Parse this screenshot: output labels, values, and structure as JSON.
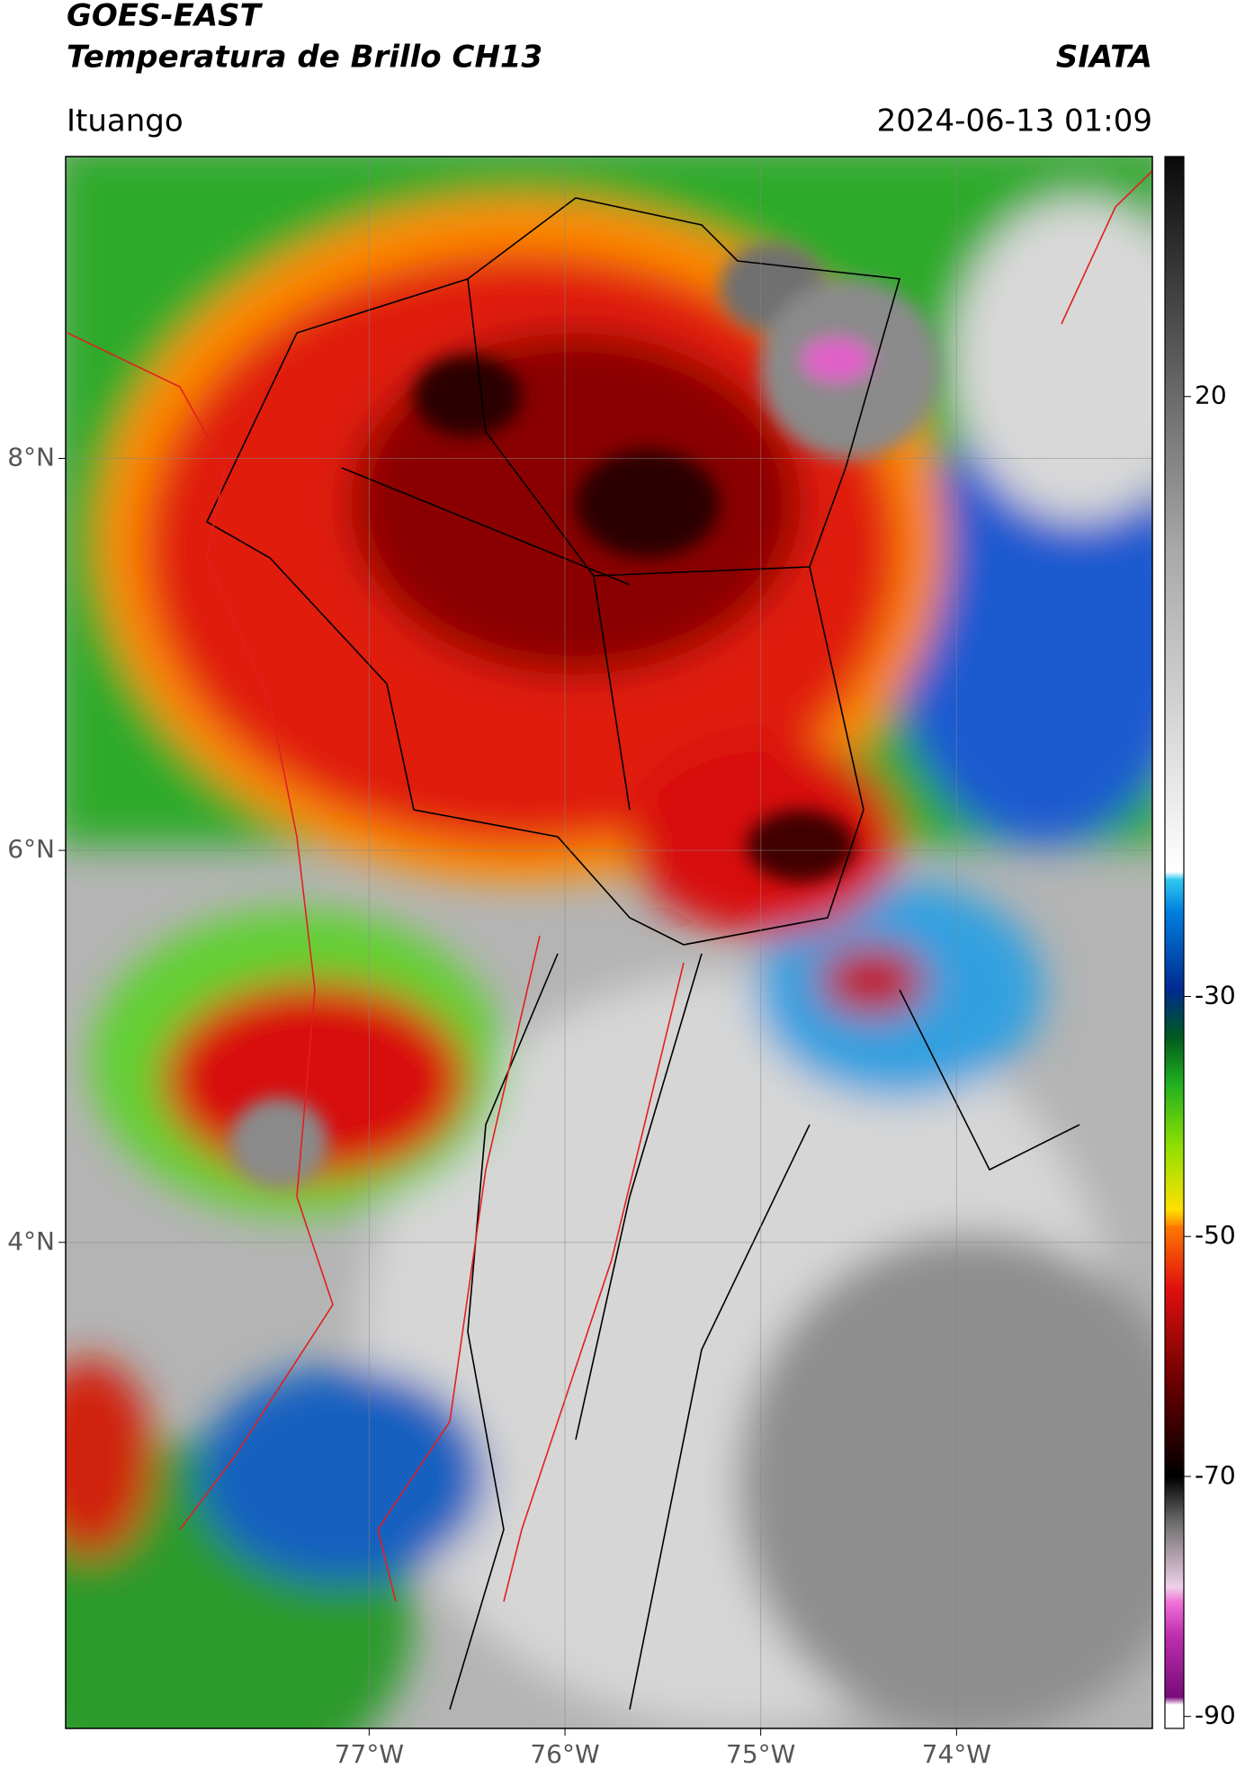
{
  "header": {
    "title_line1": "GOES-EAST",
    "title_line2": "Temperatura de Brillo CH13",
    "source": "SIATA",
    "location": "Ituango",
    "datetime": "2024-06-13 01:09"
  },
  "map": {
    "lonlim": [
      -78.55,
      -73.0
    ],
    "latlim": [
      1.52,
      9.54
    ],
    "lon_ticks": [
      {
        "value": -77,
        "label": "77°W"
      },
      {
        "value": -76,
        "label": "76°W"
      },
      {
        "value": -75,
        "label": "75°W"
      },
      {
        "value": -74,
        "label": "74°W"
      }
    ],
    "lat_ticks": [
      {
        "value": 8,
        "label": "8°N"
      },
      {
        "value": 6,
        "label": "6°N"
      },
      {
        "value": 4,
        "label": "4°N"
      }
    ],
    "grid": true
  },
  "colorbar": {
    "lim": [
      -91,
      40
    ],
    "ticks": [
      20,
      -30,
      -50,
      -70,
      -90
    ]
  }
}
